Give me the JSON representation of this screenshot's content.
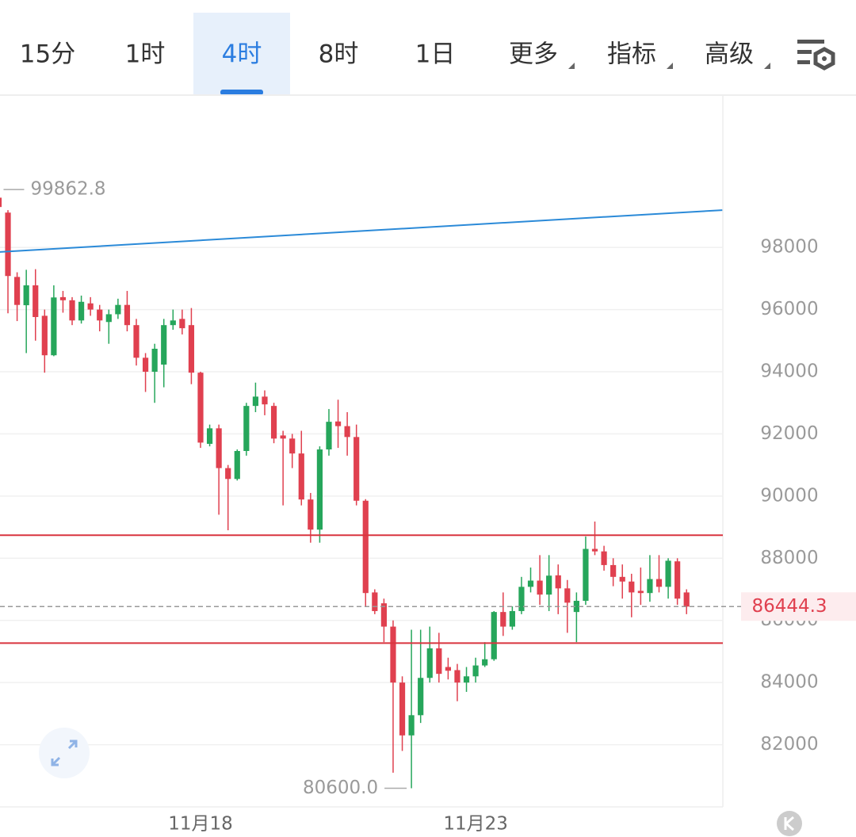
{
  "tabs": [
    "15分",
    "1时",
    "4时",
    "8时",
    "1日",
    "更多",
    "指标",
    "高级"
  ],
  "active_tab": 2,
  "chart_data": {
    "type": "candlestick",
    "categories": [
      null,
      null,
      null,
      null,
      null,
      null,
      null,
      null,
      null,
      null,
      null,
      null,
      null,
      null,
      null,
      null,
      null,
      null,
      null,
      null,
      null,
      null,
      "11月18",
      null,
      null,
      null,
      null,
      null,
      null,
      null,
      null,
      null,
      null,
      null,
      null,
      null,
      null,
      null,
      null,
      null,
      null,
      null,
      null,
      null,
      null,
      null,
      null,
      null,
      null,
      null,
      null,
      null,
      "11月23",
      null,
      null,
      null,
      null,
      null,
      null,
      null,
      null,
      null,
      null,
      null,
      null,
      null,
      null,
      null,
      null,
      null,
      null,
      null,
      null,
      null,
      null,
      null
    ],
    "open": [
      99600,
      99120,
      97050,
      96140,
      96780,
      95800,
      94530,
      96400,
      96300,
      95650,
      96200,
      96000,
      95600,
      95850,
      96150,
      95500,
      94450,
      94000,
      94230,
      95500,
      95700,
      95500,
      93970,
      91680,
      92180,
      90900,
      90550,
      91450,
      92900,
      93200,
      92900,
      91950,
      91850,
      91370,
      89890,
      88920,
      91500,
      92400,
      92250,
      91900,
      89850,
      86900,
      86550,
      85800,
      84000,
      82300,
      82950,
      84150,
      85100,
      84500,
      84400,
      84000,
      84200,
      84550,
      84750,
      86270,
      85800,
      86300,
      87080,
      87280,
      86830,
      87450,
      87030,
      86270,
      86630,
      88300,
      88220,
      87780,
      87400,
      87250,
      86950,
      86880,
      87330,
      87080,
      87900,
      86900
    ],
    "high": [
      99862.8,
      99200,
      97200,
      97280,
      97300,
      96000,
      96780,
      96600,
      96400,
      96450,
      96400,
      96150,
      96000,
      96350,
      96600,
      95700,
      94600,
      94900,
      95700,
      96000,
      96000,
      96050,
      94000,
      92300,
      92300,
      91000,
      91500,
      93000,
      93650,
      93400,
      93000,
      92100,
      92000,
      92100,
      90100,
      91600,
      92800,
      93100,
      92700,
      92300,
      89900,
      87000,
      86700,
      86000,
      84200,
      85700,
      85700,
      85800,
      85600,
      84800,
      84600,
      84500,
      84800,
      85300,
      86300,
      86900,
      86450,
      87400,
      87700,
      88100,
      88100,
      87800,
      87300,
      86900,
      88700,
      89180,
      88400,
      88000,
      87800,
      87500,
      87700,
      88100,
      88100,
      88000,
      88000,
      87000
    ],
    "low": [
      99100,
      95880,
      95630,
      94600,
      95000,
      93970,
      94500,
      95900,
      95500,
      95550,
      95800,
      95300,
      94900,
      95700,
      95300,
      94200,
      93350,
      93000,
      93500,
      95350,
      95200,
      93600,
      91550,
      91600,
      89400,
      88900,
      90500,
      91300,
      92700,
      92600,
      91700,
      89700,
      90900,
      89700,
      88500,
      88500,
      91300,
      91550,
      91300,
      89700,
      86450,
      86200,
      85300,
      81100,
      81800,
      80600.0,
      82700,
      84000,
      84000,
      84100,
      83400,
      83700,
      84000,
      84500,
      84700,
      85500,
      85700,
      86200,
      86900,
      86500,
      86300,
      86200,
      85600,
      85300,
      86500,
      88100,
      87600,
      87100,
      86700,
      86100,
      86500,
      86600,
      86900,
      86700,
      86500,
      86200
    ],
    "close": [
      99300,
      97080,
      96150,
      96780,
      95760,
      94530,
      96390,
      96300,
      95650,
      96250,
      96000,
      95650,
      95850,
      96150,
      95500,
      94450,
      94000,
      94740,
      95500,
      95650,
      95400,
      93970,
      91720,
      92180,
      90900,
      90550,
      91450,
      92900,
      93200,
      92950,
      91850,
      91850,
      91370,
      89890,
      88920,
      91500,
      92390,
      92250,
      91900,
      89850,
      86880,
      86300,
      85800,
      84000,
      82300,
      82950,
      84150,
      85100,
      84280,
      84380,
      84000,
      84200,
      84550,
      84750,
      86270,
      85800,
      86300,
      87080,
      87280,
      86830,
      87440,
      87030,
      86570,
      86630,
      88300,
      88220,
      87780,
      87400,
      87250,
      86900,
      86880,
      87330,
      87080,
      87920,
      86700,
      86444.3
    ],
    "up_color": "#26a65b",
    "down_color": "#e0404f",
    "ylim": [
      80000,
      102900
    ],
    "yticks": [
      82000,
      84000,
      86000,
      88000,
      90000,
      92000,
      94000,
      96000,
      98000
    ],
    "grid": true,
    "high_label": "99862.8",
    "low_label": "80600.0",
    "last_label": "86444.3",
    "trend_line": {
      "color": "#2b8ad8",
      "x": [
        -0.1,
        78.9
      ],
      "values": [
        97850,
        99200
      ]
    },
    "levels": {
      "color": "#d9343f",
      "values": [
        88740,
        85270
      ]
    }
  }
}
